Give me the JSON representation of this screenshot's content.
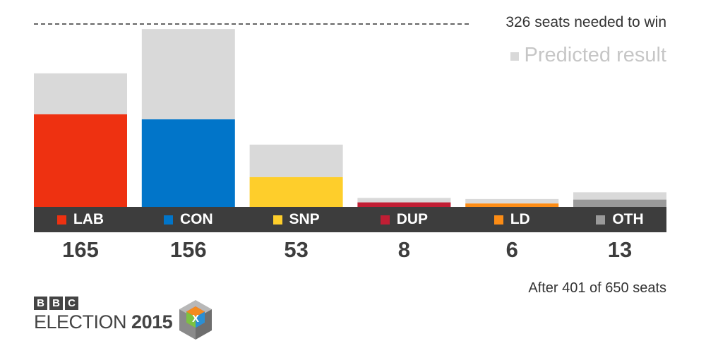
{
  "chart_data": {
    "type": "bar",
    "stacked": true,
    "categories": [
      "LAB",
      "CON",
      "SNP",
      "DUP",
      "LD",
      "OTH"
    ],
    "series": [
      {
        "name": "",
        "values": [
          165,
          156,
          53,
          8,
          6,
          13
        ]
      },
      {
        "name": "Predicted result",
        "values": [
          73,
          161,
          58,
          8,
          8,
          13
        ]
      }
    ],
    "party_colors": [
      "#ee3111",
      "#0175c9",
      "#fece2b",
      "#c01e34",
      "#fc8c15",
      "#9a9a9a"
    ],
    "predicted_color": "#d9d9d9",
    "ylim": [
      0,
      326
    ],
    "reference_line": {
      "value": 326,
      "label": "326 seats needed to win"
    },
    "legend": {
      "label": "Predicted result",
      "position": "top-right"
    },
    "grid": false,
    "footnote": "After 401 of 650 seats"
  },
  "branding": {
    "bbc_letters": [
      "B",
      "B",
      "C"
    ],
    "election_word": "ELECTION",
    "election_year": "2015",
    "cube_letter": "X"
  }
}
